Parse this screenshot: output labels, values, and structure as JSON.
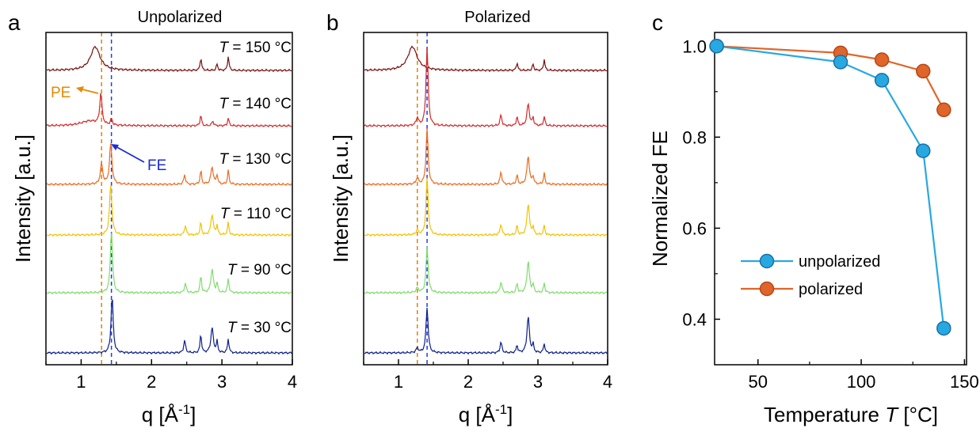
{
  "panels": {
    "a": {
      "letter": "a",
      "title": "Unpolarized",
      "xlabel": "q [Å",
      "xlabel_sup": "-1",
      "xlabel_end": "]",
      "ylabel": "Intensity [a.u.]",
      "annotation_pe": "PE",
      "annotation_fe": "FE"
    },
    "b": {
      "letter": "b",
      "title": "Polarized",
      "xlabel": "q [Å",
      "xlabel_sup": "-1",
      "xlabel_end": "]",
      "ylabel": "Intensity [a.u.]"
    },
    "c": {
      "letter": "c",
      "xlabel": "Temperature",
      "xlabel_var": "T",
      "xlabel_unit": "[°C]",
      "ylabel": "Normalized FE"
    }
  },
  "temperature_labels": [
    {
      "var": "T",
      "text": " = 150 °C"
    },
    {
      "var": "T",
      "text": " = 140 °C"
    },
    {
      "var": "T",
      "text": " = 130 °C"
    },
    {
      "var": "T",
      "text": " = 110 °C"
    },
    {
      "var": "T",
      "text": " = 90 °C"
    },
    {
      "var": "T",
      "text": " = 30 °C"
    }
  ],
  "chart_data": [
    {
      "type": "line",
      "panel": "a",
      "title": "Unpolarized",
      "xlabel": "q [Å-1]",
      "ylabel": "Intensity [a.u.]",
      "xlim": [
        0.5,
        4
      ],
      "xticks": [
        1,
        2,
        3,
        4
      ],
      "y_ticks_shown": false,
      "reference_lines": [
        {
          "label": "PE",
          "x": 1.29,
          "color": "#e67e00",
          "style": "dashed"
        },
        {
          "label": "FE",
          "x": 1.43,
          "color": "#1f3fe0",
          "style": "dashed"
        }
      ],
      "series": [
        {
          "temperature": "150 °C",
          "color": "#7b0d0d",
          "peaks": [
            {
              "x": 1.2,
              "h": 30,
              "w": 0.08
            },
            {
              "x": 2.7,
              "h": 16,
              "w": 0.012
            },
            {
              "x": 2.93,
              "h": 8,
              "w": 0.012
            },
            {
              "x": 3.09,
              "h": 18,
              "w": 0.012
            }
          ]
        },
        {
          "temperature": "140 °C",
          "color": "#d42a2a",
          "peaks": [
            {
              "x": 1.12,
              "h": 6,
              "w": 0.15
            },
            {
              "x": 1.28,
              "h": 40,
              "w": 0.018
            },
            {
              "x": 1.43,
              "h": 8,
              "w": 0.015
            },
            {
              "x": 2.7,
              "h": 14,
              "w": 0.012
            },
            {
              "x": 2.87,
              "h": 6,
              "w": 0.015
            },
            {
              "x": 3.09,
              "h": 10,
              "w": 0.012
            }
          ]
        },
        {
          "temperature": "130 °C",
          "color": "#ec6a1e",
          "peaks": [
            {
              "x": 1.29,
              "h": 26,
              "w": 0.02
            },
            {
              "x": 1.42,
              "h": 52,
              "w": 0.02
            },
            {
              "x": 2.47,
              "h": 12,
              "w": 0.015
            },
            {
              "x": 2.7,
              "h": 18,
              "w": 0.012
            },
            {
              "x": 2.86,
              "h": 22,
              "w": 0.02
            },
            {
              "x": 2.93,
              "h": 12,
              "w": 0.012
            },
            {
              "x": 3.09,
              "h": 18,
              "w": 0.012
            }
          ]
        },
        {
          "temperature": "110 °C",
          "color": "#f2c200",
          "peaks": [
            {
              "x": 1.42,
              "h": 64,
              "w": 0.02
            },
            {
              "x": 2.48,
              "h": 12,
              "w": 0.015
            },
            {
              "x": 2.7,
              "h": 16,
              "w": 0.012
            },
            {
              "x": 2.86,
              "h": 26,
              "w": 0.02
            },
            {
              "x": 2.93,
              "h": 12,
              "w": 0.012
            },
            {
              "x": 3.09,
              "h": 16,
              "w": 0.012
            }
          ]
        },
        {
          "temperature": "90 °C",
          "color": "#7fdc6c",
          "peaks": [
            {
              "x": 1.43,
              "h": 80,
              "w": 0.018
            },
            {
              "x": 2.48,
              "h": 12,
              "w": 0.015
            },
            {
              "x": 2.7,
              "h": 22,
              "w": 0.012
            },
            {
              "x": 2.86,
              "h": 30,
              "w": 0.02
            },
            {
              "x": 2.93,
              "h": 12,
              "w": 0.012
            },
            {
              "x": 3.09,
              "h": 18,
              "w": 0.012
            }
          ]
        },
        {
          "temperature": "30 °C",
          "color": "#0d1f8a",
          "peaks": [
            {
              "x": 1.44,
              "h": 72,
              "w": 0.018
            },
            {
              "x": 2.47,
              "h": 16,
              "w": 0.015
            },
            {
              "x": 2.7,
              "h": 24,
              "w": 0.012
            },
            {
              "x": 2.86,
              "h": 32,
              "w": 0.02
            },
            {
              "x": 2.93,
              "h": 14,
              "w": 0.012
            },
            {
              "x": 3.09,
              "h": 18,
              "w": 0.012
            }
          ]
        }
      ]
    },
    {
      "type": "line",
      "panel": "b",
      "title": "Polarized",
      "xlabel": "q [Å-1]",
      "ylabel": "Intensity [a.u.]",
      "xlim": [
        0.5,
        4
      ],
      "xticks": [
        1,
        2,
        3,
        4
      ],
      "y_ticks_shown": false,
      "reference_lines": [
        {
          "x": 1.27,
          "color": "#e67e00",
          "style": "dashed"
        },
        {
          "x": 1.41,
          "color": "#1f3fe0",
          "style": "dashed"
        }
      ],
      "series": [
        {
          "temperature": "150 °C",
          "color": "#7b0d0d",
          "peaks": [
            {
              "x": 1.2,
              "h": 30,
              "w": 0.08
            },
            {
              "x": 2.7,
              "h": 10,
              "w": 0.012
            },
            {
              "x": 2.93,
              "h": 8,
              "w": 0.012
            },
            {
              "x": 3.09,
              "h": 14,
              "w": 0.012
            }
          ]
        },
        {
          "temperature": "140 °C",
          "color": "#d42a2a",
          "peaks": [
            {
              "x": 1.27,
              "h": 10,
              "w": 0.02
            },
            {
              "x": 1.41,
              "h": 100,
              "w": 0.018
            },
            {
              "x": 2.47,
              "h": 14,
              "w": 0.015
            },
            {
              "x": 2.7,
              "h": 12,
              "w": 0.012
            },
            {
              "x": 2.86,
              "h": 28,
              "w": 0.02
            },
            {
              "x": 2.93,
              "h": 10,
              "w": 0.012
            },
            {
              "x": 3.09,
              "h": 12,
              "w": 0.012
            }
          ]
        },
        {
          "temperature": "130 °C",
          "color": "#ec6a1e",
          "peaks": [
            {
              "x": 1.27,
              "h": 8,
              "w": 0.02
            },
            {
              "x": 1.41,
              "h": 70,
              "w": 0.018
            },
            {
              "x": 2.47,
              "h": 16,
              "w": 0.015
            },
            {
              "x": 2.7,
              "h": 12,
              "w": 0.012
            },
            {
              "x": 2.86,
              "h": 36,
              "w": 0.02
            },
            {
              "x": 2.93,
              "h": 10,
              "w": 0.012
            },
            {
              "x": 3.09,
              "h": 14,
              "w": 0.012
            }
          ]
        },
        {
          "temperature": "110 °C",
          "color": "#f2c200",
          "peaks": [
            {
              "x": 1.27,
              "h": 6,
              "w": 0.02
            },
            {
              "x": 1.41,
              "h": 72,
              "w": 0.018
            },
            {
              "x": 2.47,
              "h": 14,
              "w": 0.015
            },
            {
              "x": 2.7,
              "h": 12,
              "w": 0.012
            },
            {
              "x": 2.86,
              "h": 40,
              "w": 0.02
            },
            {
              "x": 2.93,
              "h": 10,
              "w": 0.012
            },
            {
              "x": 3.09,
              "h": 12,
              "w": 0.012
            }
          ]
        },
        {
          "temperature": "90 °C",
          "color": "#7fdc6c",
          "peaks": [
            {
              "x": 1.27,
              "h": 6,
              "w": 0.02
            },
            {
              "x": 1.41,
              "h": 58,
              "w": 0.018
            },
            {
              "x": 2.47,
              "h": 14,
              "w": 0.015
            },
            {
              "x": 2.7,
              "h": 12,
              "w": 0.012
            },
            {
              "x": 2.86,
              "h": 40,
              "w": 0.02
            },
            {
              "x": 2.93,
              "h": 10,
              "w": 0.012
            },
            {
              "x": 3.09,
              "h": 12,
              "w": 0.012
            }
          ]
        },
        {
          "temperature": "30 °C",
          "color": "#0d1f8a",
          "peaks": [
            {
              "x": 1.27,
              "h": 6,
              "w": 0.02
            },
            {
              "x": 1.41,
              "h": 58,
              "w": 0.018
            },
            {
              "x": 2.47,
              "h": 14,
              "w": 0.015
            },
            {
              "x": 2.7,
              "h": 10,
              "w": 0.012
            },
            {
              "x": 2.86,
              "h": 46,
              "w": 0.02
            },
            {
              "x": 2.93,
              "h": 10,
              "w": 0.012
            },
            {
              "x": 3.09,
              "h": 12,
              "w": 0.012
            }
          ]
        }
      ]
    },
    {
      "type": "line",
      "panel": "c",
      "xlabel": "Temperature T [°C]",
      "ylabel": "Normalized FE",
      "xlim": [
        29,
        151
      ],
      "ylim": [
        0.3,
        1.03
      ],
      "xticks": [
        50,
        100,
        150
      ],
      "yticks": [
        0.4,
        0.6,
        0.8,
        1.0
      ],
      "ytick_labels": [
        "0.4",
        "0.6",
        "0.8",
        "1.0"
      ],
      "legend_position": "lower-left",
      "series": [
        {
          "name": "polarized",
          "color": "#e0652a",
          "edge": "#b5461a",
          "x": [
            30,
            90,
            110,
            130,
            140
          ],
          "y": [
            1.0,
            0.985,
            0.97,
            0.945,
            0.86
          ]
        },
        {
          "name": "unpolarized",
          "color": "#28a8e0",
          "edge": "#1a6fa8",
          "x": [
            30,
            90,
            110,
            130,
            140
          ],
          "y": [
            1.0,
            0.965,
            0.925,
            0.77,
            0.38
          ]
        }
      ]
    }
  ]
}
